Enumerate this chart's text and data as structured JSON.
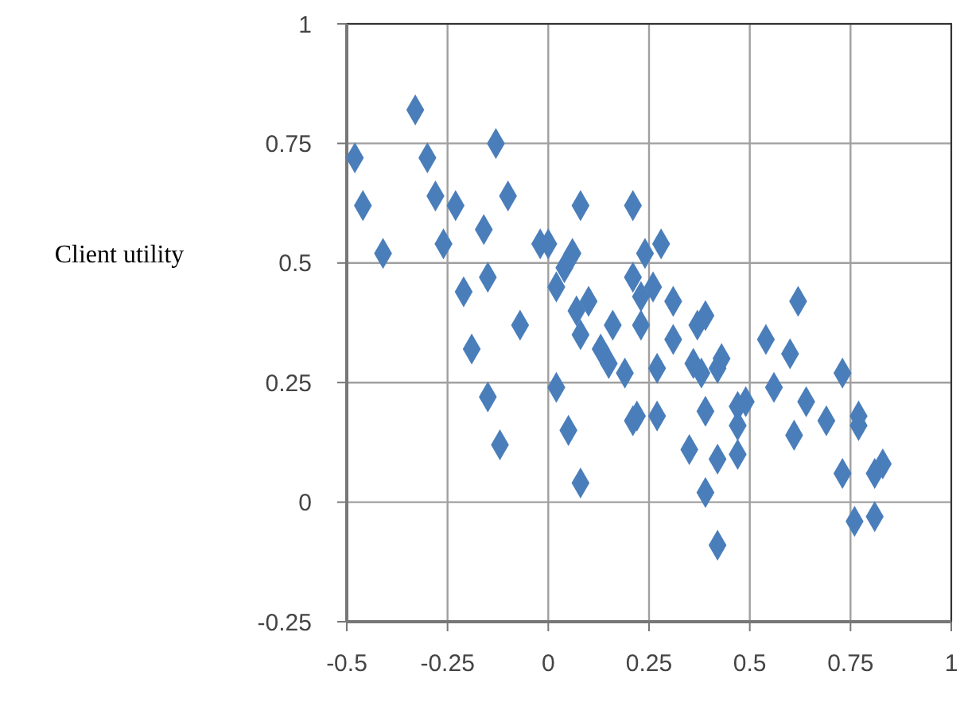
{
  "chart_data": {
    "type": "scatter",
    "ylabel": "Client utility",
    "xlim": [
      -0.5,
      1
    ],
    "ylim": [
      -0.25,
      1
    ],
    "xticks": [
      -0.5,
      -0.25,
      0,
      0.25,
      0.5,
      0.75,
      1
    ],
    "yticks": [
      -0.25,
      0,
      0.25,
      0.5,
      0.75,
      1
    ],
    "grid": true,
    "marker": "diamond",
    "series": [
      {
        "color": "#4a7ebb",
        "x": [
          -0.48,
          -0.46,
          -0.41,
          -0.33,
          -0.3,
          -0.28,
          -0.26,
          -0.23,
          -0.13,
          -0.1,
          -0.21,
          -0.16,
          -0.15,
          -0.19,
          -0.15,
          -0.12,
          -0.07,
          -0.02,
          0.0,
          0.02,
          0.02,
          0.04,
          0.05,
          0.06,
          0.08,
          0.08,
          0.07,
          0.08,
          0.1,
          0.13,
          0.15,
          0.16,
          0.19,
          0.21,
          0.21,
          0.23,
          0.21,
          0.23,
          0.24,
          0.28,
          0.26,
          0.27,
          0.27,
          0.31,
          0.31,
          0.36,
          0.38,
          0.39,
          0.37,
          0.43,
          0.42,
          0.54,
          0.6,
          0.62,
          0.73,
          0.56,
          0.64,
          0.69,
          0.77,
          0.77,
          0.61,
          0.73,
          0.81,
          0.83,
          0.76,
          0.81,
          0.39,
          0.47,
          0.49,
          0.47,
          0.35,
          0.42,
          0.47,
          0.39,
          0.42,
          0.22
        ],
        "values": [
          0.72,
          0.62,
          0.52,
          0.82,
          0.72,
          0.64,
          0.54,
          0.62,
          0.75,
          0.64,
          0.44,
          0.57,
          0.47,
          0.32,
          0.22,
          0.12,
          0.37,
          0.54,
          0.54,
          0.45,
          0.24,
          0.49,
          0.15,
          0.52,
          0.04,
          0.62,
          0.4,
          0.35,
          0.42,
          0.32,
          0.29,
          0.37,
          0.27,
          0.47,
          0.62,
          0.43,
          0.17,
          0.37,
          0.52,
          0.54,
          0.45,
          0.28,
          0.18,
          0.34,
          0.42,
          0.29,
          0.27,
          0.39,
          0.37,
          0.3,
          0.28,
          0.34,
          0.31,
          0.42,
          0.27,
          0.24,
          0.21,
          0.17,
          0.18,
          0.16,
          0.14,
          0.06,
          0.06,
          0.08,
          -0.04,
          -0.03,
          0.19,
          0.2,
          0.21,
          0.16,
          0.11,
          0.09,
          0.1,
          0.02,
          -0.09,
          0.18
        ]
      }
    ]
  }
}
